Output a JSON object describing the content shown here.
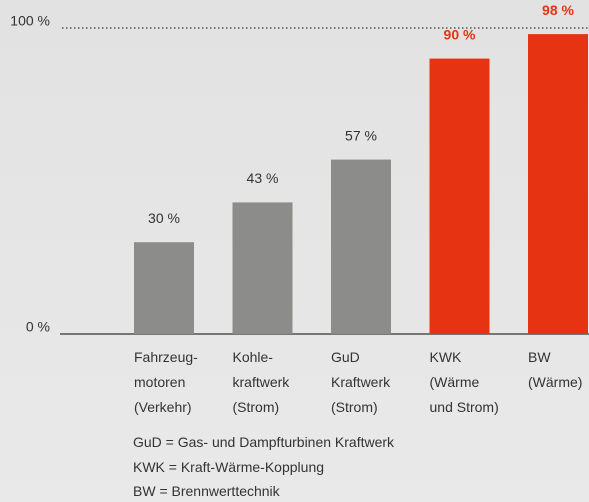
{
  "chart_data": {
    "type": "bar",
    "categories": [
      "Fahrzeug-\nmotoren\n(Verkehr)",
      "Kohle-\nkraftwerk\n(Strom)",
      "GuD\nKraftwerk\n(Strom)",
      "KWK\n(Wärme\nund Strom)",
      "BW\n(Wärme)"
    ],
    "values": [
      30,
      43,
      57,
      90,
      98
    ],
    "value_labels": [
      "30 %",
      "43 %",
      "57 %",
      "90 %",
      "98 %"
    ],
    "colors": [
      "#8c8c8b",
      "#8c8c8b",
      "#8c8c8b",
      "#e63312",
      "#e63312"
    ],
    "label_colors": [
      "#333333",
      "#333333",
      "#333333",
      "#e63312",
      "#e63312"
    ],
    "ylim": [
      0,
      100
    ],
    "yticks": [
      {
        "value": 0,
        "label": "0 %"
      },
      {
        "value": 100,
        "label": "100 %"
      }
    ],
    "notes": [
      "GuD = Gas- und Dampfturbinen Kraftwerk",
      "KWK = Kraft-Wärme-Kopplung",
      "BW = Brennwerttechnik"
    ]
  }
}
